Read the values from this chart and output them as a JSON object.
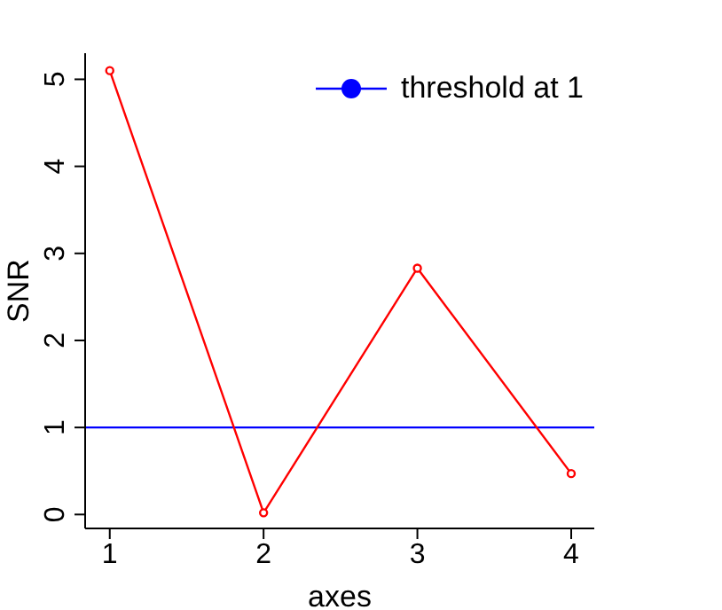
{
  "chart_data": {
    "type": "line",
    "xlabel": "axes",
    "ylabel": "SNR",
    "x": [
      1,
      2,
      3,
      4
    ],
    "series": [
      {
        "color": "#ff0000",
        "values": [
          5.1,
          0.02,
          2.83,
          0.47
        ]
      }
    ],
    "xlim": [
      0.84,
      4.15
    ],
    "xticks": [
      1,
      2,
      3,
      4
    ],
    "ylim": [
      -0.16,
      5.3
    ],
    "yticks": [
      0,
      1,
      2,
      3,
      4,
      5
    ],
    "ref_lines": [
      {
        "axis": "y",
        "value": 1,
        "label": "threshold at 1",
        "color": "#0000ff"
      }
    ],
    "legend": "top right",
    "grid": false,
    "marker": "circle",
    "line_style": "solid"
  }
}
